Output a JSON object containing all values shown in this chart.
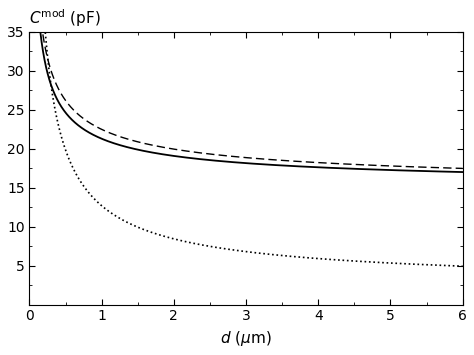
{
  "title": "$C^{\\rm mod}$ (pF)",
  "xlabel": "$d$ ($\\mu$m)",
  "xlim": [
    0,
    6
  ],
  "ylim": [
    0,
    35
  ],
  "xticks": [
    0,
    1,
    2,
    3,
    4,
    5,
    6
  ],
  "yticks": [
    5,
    10,
    15,
    20,
    25,
    30,
    35
  ],
  "background_color": "#ffffff",
  "line_color": "#000000",
  "figsize": [
    4.74,
    3.55
  ],
  "dpi": 100,
  "curves": [
    {
      "A": 6.5,
      "B": 14.8,
      "alpha": 0.6,
      "style": "solid",
      "lw": 1.3
    },
    {
      "A": 8.0,
      "B": 14.5,
      "alpha": 0.55,
      "style": "dashed",
      "lw": 1.0,
      "dashes": [
        6,
        3
      ]
    },
    {
      "A": 10.5,
      "B": 2.2,
      "alpha": 0.75,
      "style": "dotted",
      "lw": 1.2,
      "dashes": [
        1,
        3
      ]
    }
  ]
}
